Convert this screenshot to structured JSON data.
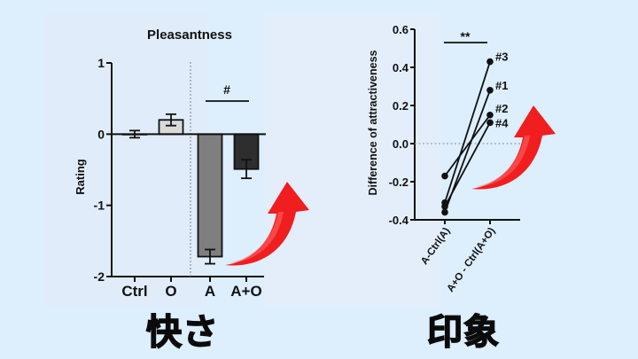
{
  "colors": {
    "background": "#ddeefd",
    "arrow": "#f01e1e",
    "bar_ctrl": "#ffffff",
    "bar_o": "#d9d9d9",
    "bar_a": "#7f7f7f",
    "bar_ao": "#2e2e2e"
  },
  "captions": {
    "left": "快さ",
    "right": "印象"
  },
  "chart_data": [
    {
      "type": "bar",
      "title": "Pleasantness",
      "xlabel": "",
      "ylabel": "Rating",
      "categories": [
        "Ctrl",
        "O",
        "A",
        "A+O"
      ],
      "values": [
        0.0,
        0.2,
        -1.72,
        -0.49
      ],
      "errors": [
        0.05,
        0.08,
        0.1,
        0.13
      ],
      "bar_colors": [
        "#ffffff",
        "#d9d9d9",
        "#7f7f7f",
        "#2e2e2e"
      ],
      "ylim": [
        -2,
        1
      ],
      "yticks": [
        1,
        0,
        -1,
        -2
      ],
      "ytick_labels": [
        "1",
        "0",
        "-1",
        "-2"
      ],
      "grid": false,
      "separator": "dotted vertical line between O and A",
      "annotations": [
        {
          "text": "#",
          "between": [
            "A",
            "A+O"
          ]
        }
      ]
    },
    {
      "type": "line",
      "title": "",
      "xlabel": "",
      "ylabel": "Difference of attractiveness",
      "categories": [
        "A-Ctrl(A)",
        "A+O - Ctrl(A+O)"
      ],
      "series": [
        {
          "name": "#3",
          "values": [
            -0.31,
            0.43
          ]
        },
        {
          "name": "#1",
          "values": [
            -0.36,
            0.28
          ]
        },
        {
          "name": "#2",
          "values": [
            -0.17,
            0.15
          ]
        },
        {
          "name": "#4",
          "values": [
            -0.33,
            0.11
          ]
        }
      ],
      "ylim": [
        -0.4,
        0.6
      ],
      "yticks": [
        0.6,
        0.4,
        0.2,
        0.0,
        -0.2,
        -0.4
      ],
      "ytick_labels": [
        "0.6",
        "0.4",
        "0.2",
        "0.0",
        "-0.2",
        "-0.4"
      ],
      "reference_line": {
        "y": 0.0,
        "style": "dotted"
      },
      "grid": false,
      "annotations": [
        {
          "text": "**",
          "between": [
            "A-Ctrl(A)",
            "A+O - Ctrl(A+O)"
          ]
        }
      ]
    }
  ]
}
